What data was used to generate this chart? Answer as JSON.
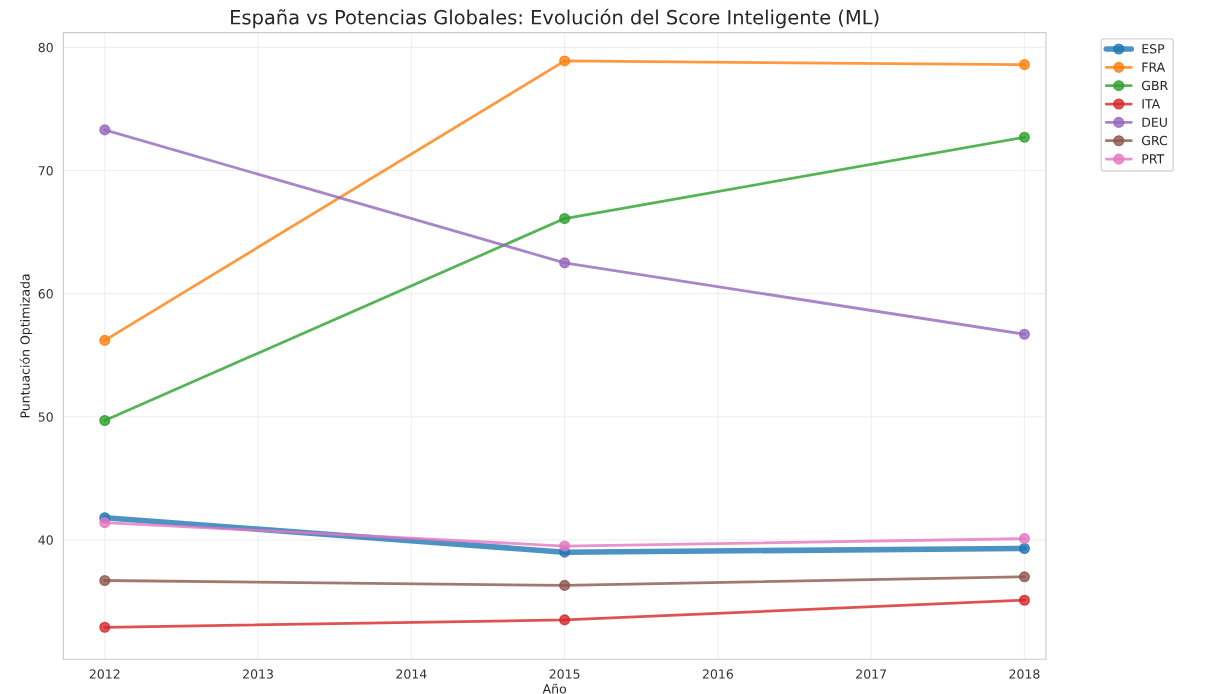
{
  "chart_data": {
    "type": "line",
    "title": "España vs Potencias Globales: Evolución del Score Inteligente (ML)",
    "xlabel": "Año",
    "ylabel": "Puntuación Optimizada",
    "x": [
      2012,
      2015,
      2018
    ],
    "series": [
      {
        "name": "ESP",
        "color": "#1f77b4",
        "values": [
          41.8,
          39.0,
          39.3
        ]
      },
      {
        "name": "FRA",
        "color": "#ff7f0e",
        "values": [
          56.2,
          78.9,
          78.6
        ]
      },
      {
        "name": "GBR",
        "color": "#2ca02c",
        "values": [
          49.7,
          66.1,
          72.7
        ]
      },
      {
        "name": "ITA",
        "color": "#d62728",
        "values": [
          32.9,
          33.5,
          35.1
        ]
      },
      {
        "name": "DEU",
        "color": "#9467bd",
        "values": [
          73.3,
          62.5,
          56.7
        ]
      },
      {
        "name": "GRC",
        "color": "#8c564b",
        "values": [
          36.7,
          36.3,
          37.0
        ]
      },
      {
        "name": "PRT",
        "color": "#e377c2",
        "values": [
          41.4,
          39.5,
          40.1
        ]
      }
    ],
    "xlim": [
      2011.73,
      2018.14
    ],
    "xticks": [
      2012,
      2013,
      2014,
      2015,
      2016,
      2017,
      2018
    ],
    "ylim": [
      30.3,
      81.2
    ],
    "yticks": [
      40,
      50,
      60,
      70,
      80
    ],
    "grid": true,
    "legend": "top right",
    "marker": "circle",
    "line_style": "solid"
  }
}
